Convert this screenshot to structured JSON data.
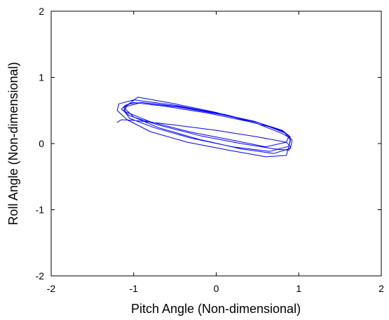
{
  "chart_data": {
    "type": "line",
    "title": "",
    "xlabel": "Pitch Angle (Non-dimensional)",
    "ylabel": "Roll Angle (Non-dimensional)",
    "xlim": [
      -2,
      2
    ],
    "ylim": [
      -2,
      2
    ],
    "xticks": [
      -2,
      -1,
      0,
      1,
      2
    ],
    "yticks": [
      -2,
      -1,
      0,
      1,
      2
    ],
    "x_tick_labels": [
      "-2",
      "-1",
      "0",
      "1",
      "2"
    ],
    "y_tick_labels": [
      "-2",
      "-1",
      "0",
      "1",
      "2"
    ],
    "grid": false,
    "legend": "none",
    "series": [
      {
        "color": "#0000ff",
        "x": [
          -1.2,
          -1.15,
          -1.0,
          -0.5,
          0.0,
          0.5,
          0.85,
          0.9,
          0.88,
          0.7,
          0.3,
          -0.2,
          -0.7,
          -1.05,
          -1.15,
          -1.1,
          -1.0,
          -0.6,
          -0.1,
          0.4,
          0.75,
          0.88,
          0.85,
          0.6,
          0.2,
          -0.3,
          -0.8,
          -1.1,
          -1.12,
          -1.05,
          -0.9,
          -0.4,
          0.1,
          0.55,
          0.85,
          0.92,
          0.9,
          0.7,
          0.3,
          -0.2,
          -0.7,
          -1.0,
          -1.1,
          -1.08,
          -0.95,
          -0.5,
          0.0,
          0.5,
          0.8,
          0.9,
          0.88,
          0.65,
          0.2,
          -0.3,
          -0.75,
          -1.05,
          -1.12,
          -1.1,
          -0.9,
          -0.45,
          0.05,
          0.5,
          0.82,
          0.9,
          0.85,
          0.6,
          0.15,
          -0.35,
          -0.8,
          -1.08,
          -1.2,
          -1.18,
          -1.0,
          -0.5,
          0.0,
          0.45,
          0.8,
          0.9
        ],
        "y": [
          0.32,
          0.36,
          0.35,
          0.28,
          0.2,
          0.1,
          0.02,
          -0.05,
          -0.1,
          -0.08,
          0.0,
          0.12,
          0.28,
          0.42,
          0.52,
          0.58,
          0.62,
          0.56,
          0.46,
          0.33,
          0.22,
          0.12,
          0.02,
          -0.05,
          0.05,
          0.17,
          0.33,
          0.48,
          0.55,
          0.6,
          0.62,
          0.55,
          0.44,
          0.3,
          0.15,
          0.05,
          -0.07,
          -0.15,
          -0.08,
          0.06,
          0.24,
          0.4,
          0.52,
          0.58,
          0.7,
          0.6,
          0.47,
          0.3,
          0.15,
          0.08,
          -0.04,
          -0.12,
          -0.05,
          0.08,
          0.24,
          0.38,
          0.5,
          0.56,
          0.62,
          0.55,
          0.44,
          0.32,
          0.18,
          0.05,
          -0.18,
          -0.2,
          -0.1,
          0.02,
          0.18,
          0.36,
          0.5,
          0.6,
          0.66,
          0.58,
          0.46,
          0.34,
          0.2,
          0.1
        ]
      }
    ]
  }
}
